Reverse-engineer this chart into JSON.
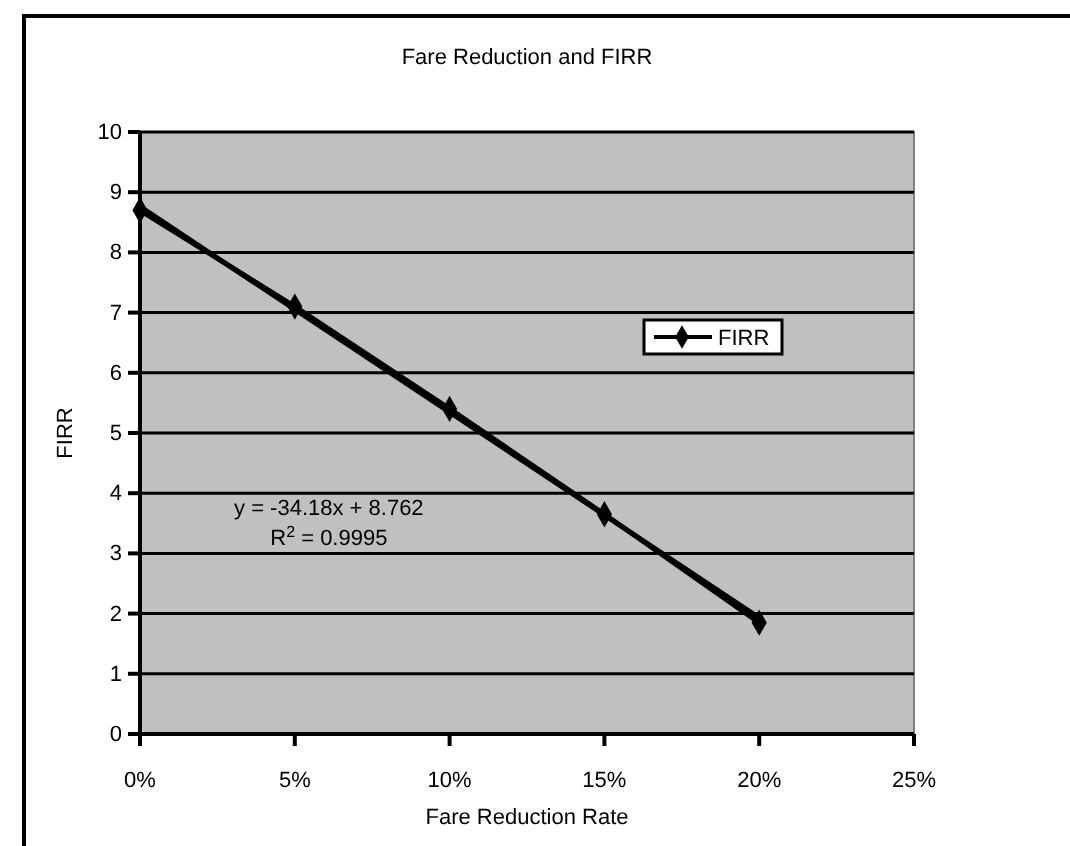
{
  "chart_data": {
    "type": "line",
    "title": "Fare Reduction and FIRR",
    "xlabel": "Fare Reduction Rate",
    "ylabel": "FIRR",
    "x": [
      0,
      0.05,
      0.1,
      0.15,
      0.2
    ],
    "series": [
      {
        "name": "FIRR",
        "color": "#000000",
        "values": [
          8.7,
          7.1,
          5.4,
          3.65,
          1.85
        ],
        "marker": "diamond"
      },
      {
        "type": "line",
        "color": "#000000",
        "x": [
          0,
          0.2
        ],
        "values": [
          8.76,
          1.93
        ],
        "marker": "none"
      }
    ],
    "xlim": [
      0,
      0.25
    ],
    "xticks": [
      {
        "value": 0,
        "label": "0%"
      },
      {
        "value": 0.05,
        "label": "5%"
      },
      {
        "value": 0.1,
        "label": "10%"
      },
      {
        "value": 0.15,
        "label": "15%"
      },
      {
        "value": 0.2,
        "label": "20%"
      },
      {
        "value": 0.25,
        "label": "25%"
      }
    ],
    "ylim": [
      0,
      10
    ],
    "yticks": [
      0,
      1,
      2,
      3,
      4,
      5,
      6,
      7,
      8,
      9,
      10
    ],
    "grid": "y",
    "legend": "right",
    "line_style": "solid",
    "annotations": [
      "y = -34.18x + 8.762",
      "R$^{2}$ = 0.9995"
    ]
  }
}
